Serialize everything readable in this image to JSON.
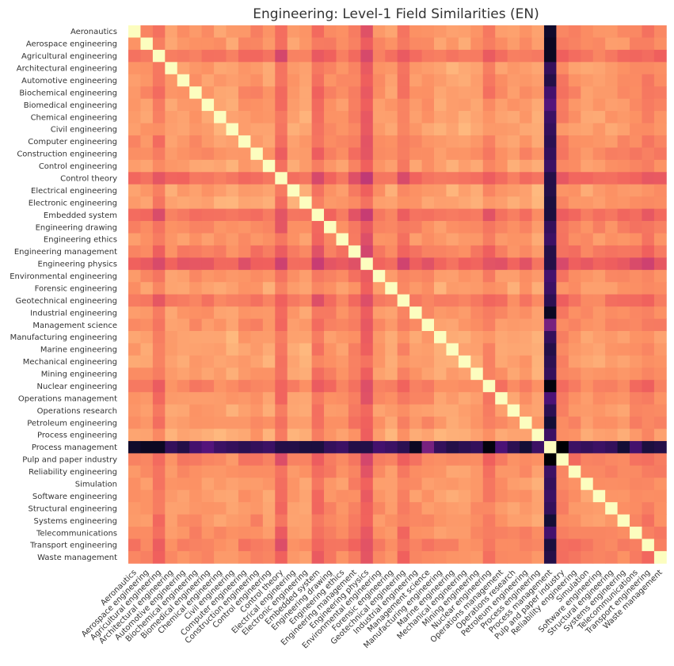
{
  "chart_data": {
    "type": "heatmap",
    "title": "Engineering: Level-1 Field Similarities (EN)",
    "xlabel": "",
    "ylabel": "",
    "colormap": "magma",
    "grid": false,
    "labels": [
      "Aeronautics",
      "Aerospace engineering",
      "Agricultural engineering",
      "Architectural engineering",
      "Automotive engineering",
      "Biochemical engineering",
      "Biomedical engineering",
      "Chemical engineering",
      "Civil engineering",
      "Computer engineering",
      "Construction engineering",
      "Control engineering",
      "Control theory",
      "Electrical engineering",
      "Electronic engineering",
      "Embedded system",
      "Engineering drawing",
      "Engineering ethics",
      "Engineering management",
      "Engineering physics",
      "Environmental engineering",
      "Forensic engineering",
      "Geotechnical engineering",
      "Industrial engineering",
      "Management science",
      "Manufacturing engineering",
      "Marine engineering",
      "Mechanical engineering",
      "Mining engineering",
      "Nuclear engineering",
      "Operations management",
      "Operations research",
      "Petroleum engineering",
      "Process engineering",
      "Process management",
      "Pulp and paper industry",
      "Reliability engineering",
      "Simulation",
      "Software engineering",
      "Structural engineering",
      "Systems engineering",
      "Telecommunications",
      "Transport engineering",
      "Waste management"
    ],
    "diagonal_value": 1.0,
    "off_diagonal_typical": 0.75,
    "row_offsets": [
      0.0,
      0.0,
      -0.06,
      0.02,
      0.01,
      0.0,
      0.01,
      0.02,
      0.03,
      0.0,
      -0.01,
      0.02,
      -0.08,
      0.02,
      0.03,
      -0.07,
      -0.02,
      0.0,
      -0.04,
      -0.12,
      0.0,
      0.02,
      -0.05,
      0.0,
      0.0,
      0.03,
      0.03,
      0.03,
      0.01,
      -0.04,
      0.0,
      0.02,
      0.0,
      0.04,
      0.0,
      -0.04,
      -0.01,
      0.01,
      0.01,
      0.0,
      0.0,
      -0.02,
      -0.04,
      -0.02
    ],
    "outlier_row": "Process management",
    "outlier_values": [
      0.08,
      0.06,
      0.06,
      0.18,
      0.14,
      0.22,
      0.26,
      0.2,
      0.18,
      0.16,
      0.18,
      0.2,
      0.14,
      0.14,
      0.12,
      0.12,
      0.18,
      0.2,
      0.14,
      0.14,
      0.22,
      0.2,
      0.16,
      0.06,
      0.34,
      0.18,
      0.14,
      0.16,
      0.18,
      0.02,
      0.24,
      0.16,
      0.1,
      0.2,
      1.0,
      0.0,
      0.2,
      0.18,
      0.2,
      0.18,
      0.1,
      0.22,
      0.12,
      0.14
    ],
    "vmin": 0.0,
    "vmax": 1.0
  }
}
